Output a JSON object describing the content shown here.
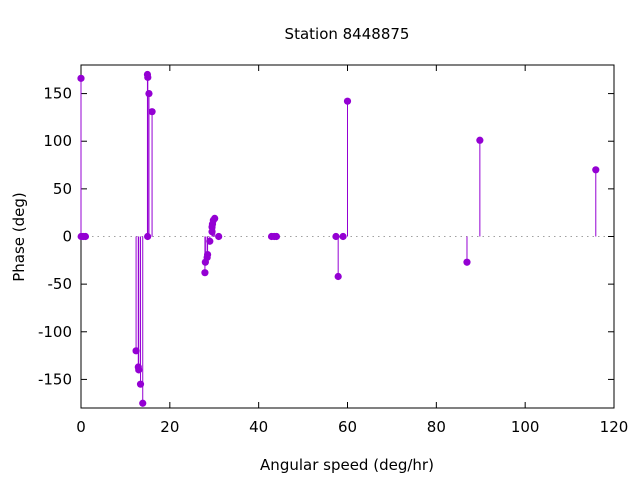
{
  "chart_data": {
    "type": "impulse-scatter",
    "title": "Station 8448875",
    "xlabel": "Angular speed (deg/hr)",
    "ylabel": "Phase (deg)",
    "xlim": [
      0,
      120
    ],
    "ylim": [
      -180,
      180
    ],
    "xticks": [
      0,
      20,
      40,
      60,
      80,
      100,
      120
    ],
    "yticks": [
      -150,
      -100,
      -50,
      0,
      50,
      100,
      150
    ],
    "zero_line": "dotted",
    "grid": false,
    "color": "#9400d3",
    "points": [
      [
        0.0,
        166
      ],
      [
        0.04,
        0
      ],
      [
        0.5,
        0
      ],
      [
        1.0,
        0
      ],
      [
        12.4,
        -120
      ],
      [
        12.9,
        -137
      ],
      [
        13.0,
        -140
      ],
      [
        13.4,
        -155
      ],
      [
        13.9,
        -175
      ],
      [
        14.96,
        170
      ],
      [
        15.04,
        167
      ],
      [
        15.0,
        0
      ],
      [
        15.3,
        150
      ],
      [
        16.0,
        131
      ],
      [
        27.9,
        -38
      ],
      [
        28.0,
        -27
      ],
      [
        28.4,
        -22
      ],
      [
        28.5,
        -19
      ],
      [
        29.0,
        -5
      ],
      [
        29.5,
        5
      ],
      [
        29.5,
        10
      ],
      [
        29.6,
        13
      ],
      [
        29.8,
        17
      ],
      [
        30.1,
        19
      ],
      [
        31.0,
        0
      ],
      [
        42.9,
        0
      ],
      [
        43.5,
        0
      ],
      [
        44.0,
        0
      ],
      [
        57.4,
        0
      ],
      [
        57.9,
        -42
      ],
      [
        59.0,
        0
      ],
      [
        60.0,
        142
      ],
      [
        86.9,
        -27
      ],
      [
        89.8,
        101
      ],
      [
        115.9,
        70
      ]
    ]
  }
}
